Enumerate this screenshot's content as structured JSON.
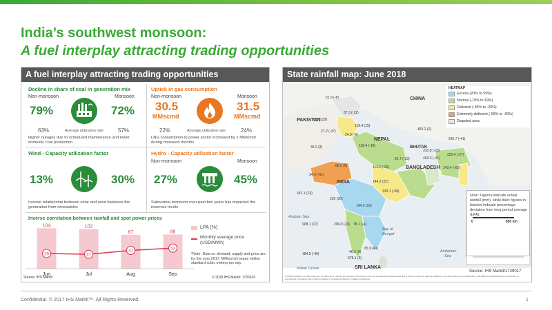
{
  "title_line1": "India’s southwest monsoon:",
  "title_line2": "A fuel interplay attracting trading opportunities",
  "left_panel": {
    "header": "A fuel interplay attracting trading opportunities",
    "coal": {
      "heading": "Decline in share of coal in generation mix",
      "non_label": "Non-monsoon",
      "mon_label": "Monsoon",
      "non_value": "79%",
      "mon_value": "72%",
      "non_util": "63%",
      "util_label": "Average utilization rate",
      "mon_util": "57%",
      "note": "Higher outages due to scheduled maintenance and lower domestic coal production",
      "icon": "coal-plant-icon"
    },
    "gas": {
      "heading": "Uptick in gas consumption",
      "non_label": "Non-monsoon",
      "mon_label": "Monsoon",
      "non_value": "30.5",
      "mon_value": "31.5",
      "unit": "MMscmd",
      "non_util": "22%",
      "util_label": "Average utilization rate",
      "mon_util": "24%",
      "note": "LNG consumption in power sector increased by 2 MMscmd during monsoon months",
      "icon": "gas-flame-icon"
    },
    "wind": {
      "heading": "Wind - Capacity utilization factor",
      "non_value": "13%",
      "mon_value": "30%",
      "non_label": "Non-monsoon",
      "mon_label": "Monsoon",
      "note": "Inverse relationship between solar and wind balances the generation from renewables",
      "icon": "wind-turbine-icon"
    },
    "hydro": {
      "heading": "Hydro - Capacity utilization factor",
      "non_label": "Non-monsoon",
      "mon_label": "Monsoon",
      "non_value": "27%",
      "mon_value": "45%",
      "note": "Subnormal monsoon over past few years has impacted the reservoir levels",
      "icon": "hydro-dam-icon"
    },
    "chart_title": "Inverse correlation between rainfall and spot power prices",
    "chart_note": "*Note: Data on demand, supply and price are for the year 2017. MMscmd means million standard cubic meters per day",
    "source": "Source: IHS Markit",
    "copyright": "© 2018 IHS Markit: 1726616",
    "colors": {
      "green": "#2b8c3a",
      "orange": "#e87722",
      "bar": "#f4c9cf",
      "line": "#d9394e"
    }
  },
  "chart_data": {
    "type": "bar",
    "categories": [
      "Jun",
      "Jul",
      "Aug",
      "Sep"
    ],
    "series": [
      {
        "name": "LPA (%)",
        "type": "bar",
        "values": [
          104,
          102,
          87,
          88
        ]
      },
      {
        "name": "Monthly average price (USD/MWh)",
        "type": "line",
        "values": [
          39,
          37,
          47,
          53
        ]
      }
    ],
    "ylim": [
      0,
      110
    ],
    "legend": "right"
  },
  "right_panel": {
    "header": "State rainfall map: June 2018",
    "legend_title": "HEATMAP",
    "legend": [
      {
        "label": "Excess (20% to 59%)",
        "color": "#a8d8f0"
      },
      {
        "label": "Normal (-19% to 19%)",
        "color": "#b9dc8e"
      },
      {
        "label": "Deficient (-59% to -20%)",
        "color": "#f7e88a"
      },
      {
        "label": "Extremely deficient (-99% to -60%)",
        "color": "#f0a050"
      },
      {
        "label": "Disputed area",
        "color": "#e6e6e6"
      }
    ],
    "countries": {
      "china": "CHINA",
      "pakistan": "PAKISTAN",
      "nepal": "NEPAL",
      "bhutan": "BHUTAN",
      "bangladesh": "BANGLADESH",
      "india": "INDIA",
      "srilanka": "SRI LANKA"
    },
    "seas": {
      "arabian": "Arabian Sea",
      "bengal1": "Bay of",
      "bengal2": "Bengal",
      "indian": "Indian Ocean",
      "andaman1": "Andaman",
      "andaman2": "Sea"
    },
    "values": [
      "51.9 (-8)",
      "87.3 (-12)",
      "62.7 (33)",
      "118.4 (15)",
      "27.2 (-37)",
      "24.0 (-6)",
      "453.2 (2)",
      "265.7 (-41)",
      "118.4 (-18)",
      "36.0 (3)",
      "310.8 (-20)",
      "86.0 (9)",
      "91.7 (-33)",
      "403.3 (-41)",
      "225.4 (-27)",
      "113.5 (-31)",
      "143.4 (-63)",
      "34.3 (-61)",
      "331.1 (13)",
      "144.2 (22)",
      "130.1 (-39)",
      "226 (30)",
      "144.2 (22)",
      "908.1 (17)",
      "209.0 (23)",
      "78.1 (-4)",
      "65.9 (41)",
      "46.5 (9)",
      "184.5 (-45)",
      "678.1 (9)"
    ],
    "note": "Note: Figures indicate actual rainfall (mm), while italic figures in bracket indicate percentage deviation from long period average (LPA).",
    "scale_0": "0",
    "scale_850": "850 km",
    "source": "Source: IHS Markit/1729017",
    "disclaimer": "© 2018 IHS Markit. All rights reserved. Provided 'as is', without any warranty. This map is not to be reproduced or disseminated and is not to be used nor cited as evidence in connection with any territorial claim. IHS Markit is impartial and not an authority on international boundaries which might be subject to unresolved claims by multiple jurisdictions."
  },
  "footer": "Confidential. © 2017 IHS Markit™. All Rights Reserved.",
  "page_number": "1"
}
